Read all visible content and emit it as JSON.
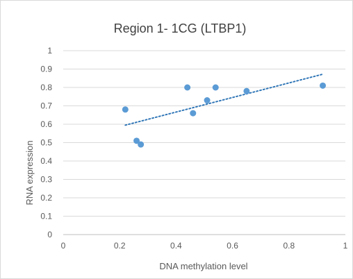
{
  "chart_data": {
    "type": "scatter",
    "title": "Region 1- 1CG (LTBP1)",
    "xlabel": "DNA methylation level",
    "ylabel": "RNA expression",
    "xlim": [
      0,
      1
    ],
    "ylim": [
      0,
      1
    ],
    "x_ticks": [
      "0",
      "0.2",
      "0.4",
      "0.6",
      "0.8",
      "1"
    ],
    "y_ticks": [
      "0",
      "0.1",
      "0.2",
      "0.3",
      "0.4",
      "0.5",
      "0.6",
      "0.7",
      "0.8",
      "0.9",
      "1"
    ],
    "gridlines": "horizontal",
    "legend": "none",
    "points": [
      {
        "x": 0.22,
        "y": 0.68
      },
      {
        "x": 0.26,
        "y": 0.51
      },
      {
        "x": 0.275,
        "y": 0.49
      },
      {
        "x": 0.44,
        "y": 0.8
      },
      {
        "x": 0.46,
        "y": 0.66
      },
      {
        "x": 0.51,
        "y": 0.73
      },
      {
        "x": 0.54,
        "y": 0.8
      },
      {
        "x": 0.65,
        "y": 0.78
      },
      {
        "x": 0.92,
        "y": 0.81
      }
    ],
    "trendline": {
      "type": "linear",
      "style": "dotted",
      "x_start": 0.22,
      "y_start": 0.595,
      "x_end": 0.92,
      "y_end": 0.872
    },
    "colors": {
      "points": "#5b9bd5",
      "trendline": "#2e75b6",
      "grid": "#d9d9d9",
      "axis": "#bfbfbf",
      "text": "#595959"
    }
  }
}
